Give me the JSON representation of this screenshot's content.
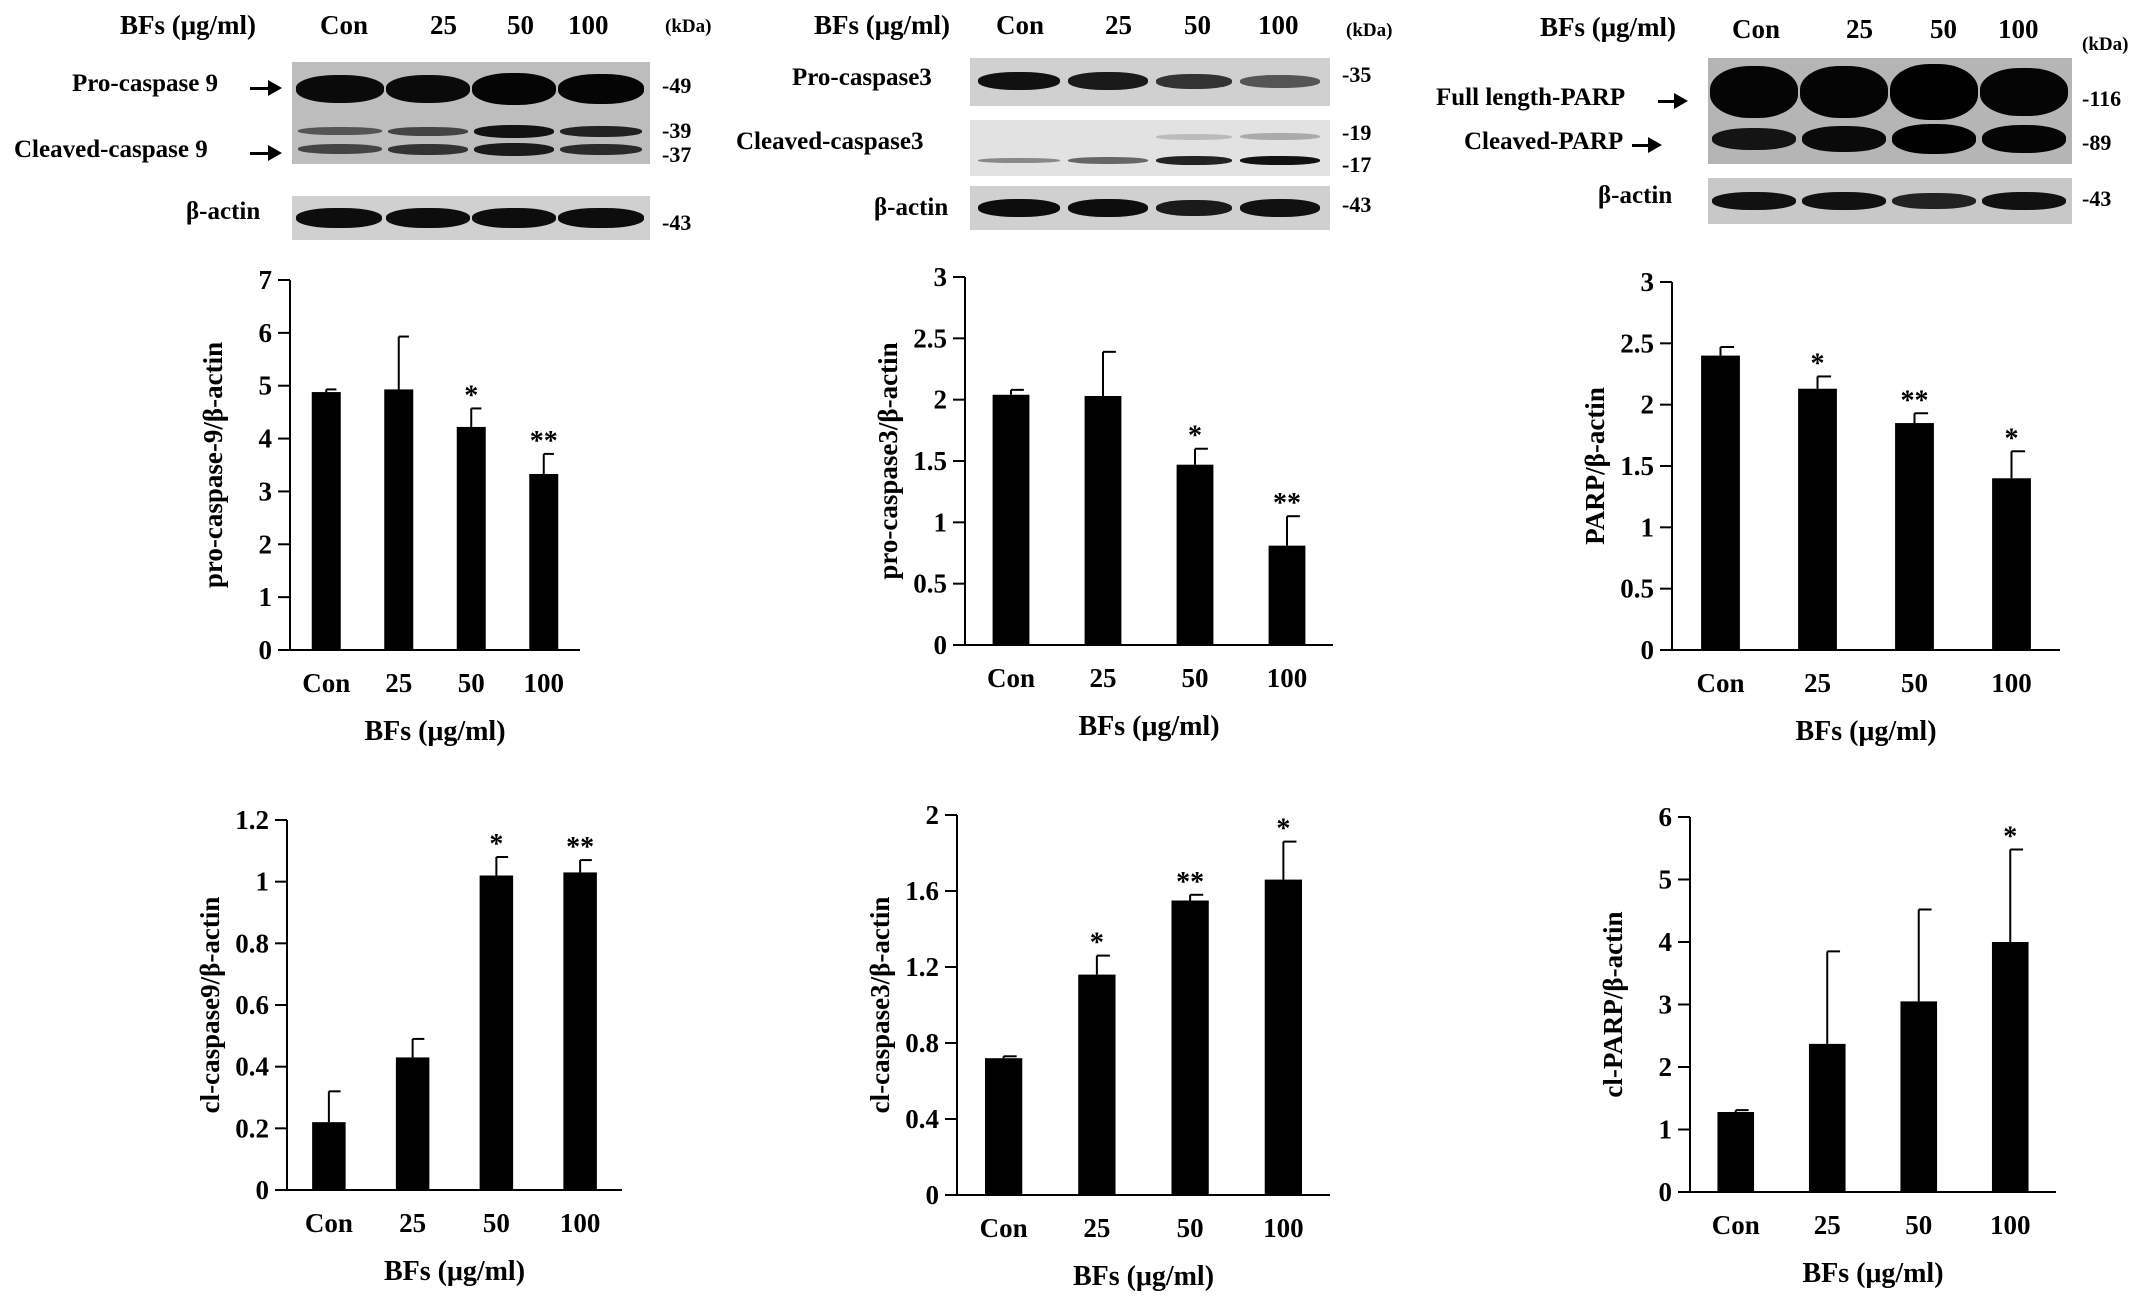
{
  "blots": [
    {
      "treatment_label": "BFs (μg/ml)",
      "lanes": [
        "Con",
        "25",
        "50",
        "100"
      ],
      "kda_label": "(kDa)",
      "rows": [
        {
          "label": "Pro-caspase 9",
          "markers": [
            "-49"
          ]
        },
        {
          "label": "Cleaved-caspase 9",
          "markers": [
            "-39",
            "-37"
          ]
        },
        {
          "label": "β-actin",
          "markers": [
            "-43"
          ]
        }
      ]
    },
    {
      "treatment_label": "BFs (μg/ml)",
      "lanes": [
        "Con",
        "25",
        "50",
        "100"
      ],
      "kda_label": "(kDa)",
      "rows": [
        {
          "label": "Pro-caspase3",
          "markers": [
            "-35"
          ]
        },
        {
          "label": "Cleaved-caspase3",
          "markers": [
            "-19",
            "-17"
          ]
        },
        {
          "label": "β-actin",
          "markers": [
            "-43"
          ]
        }
      ]
    },
    {
      "treatment_label": "BFs (μg/ml)",
      "lanes": [
        "Con",
        "25",
        "50",
        "100"
      ],
      "kda_label": "(kDa)",
      "rows": [
        {
          "label": "Full length-PARP",
          "markers": [
            "-116"
          ]
        },
        {
          "label": "Cleaved-PARP",
          "markers": [
            "-89"
          ]
        },
        {
          "label": "β-actin",
          "markers": [
            "-43"
          ]
        }
      ]
    }
  ],
  "chart_data": [
    {
      "type": "bar",
      "ylabel": "pro-caspase-9/β-actin",
      "xlabel": "BFs (μg/ml)",
      "categories": [
        "Con",
        "25",
        "50",
        "100"
      ],
      "values": [
        4.88,
        4.93,
        4.22,
        3.33
      ],
      "errors": [
        0.05,
        1.0,
        0.35,
        0.38
      ],
      "significance": [
        "",
        "",
        "*",
        "**"
      ],
      "ylim": [
        0,
        7
      ],
      "yticks": [
        0,
        1,
        2,
        3,
        4,
        5,
        6,
        7
      ],
      "ytick_labels": [
        "0",
        "1",
        "2",
        "3",
        "4",
        "5",
        "6",
        "7"
      ],
      "bar_color": "#000000",
      "grid": false
    },
    {
      "type": "bar",
      "ylabel": "pro-caspase3/β-actin",
      "xlabel": "BFs (μg/ml)",
      "categories": [
        "Con",
        "25",
        "50",
        "100"
      ],
      "values": [
        2.04,
        2.03,
        1.47,
        0.81
      ],
      "errors": [
        0.04,
        0.36,
        0.13,
        0.24
      ],
      "significance": [
        "",
        "",
        "*",
        "**"
      ],
      "ylim": [
        0,
        3
      ],
      "yticks": [
        0,
        0.5,
        1,
        1.5,
        2,
        2.5,
        3
      ],
      "ytick_labels": [
        "0",
        "0.5",
        "1",
        "1.5",
        "2",
        "2.5",
        "3"
      ],
      "bar_color": "#000000",
      "grid": false
    },
    {
      "type": "bar",
      "ylabel": "PARP/β-actin",
      "xlabel": "BFs (μg/ml)",
      "categories": [
        "Con",
        "25",
        "50",
        "100"
      ],
      "values": [
        2.4,
        2.13,
        1.85,
        1.4
      ],
      "errors": [
        0.07,
        0.1,
        0.08,
        0.22
      ],
      "significance": [
        "",
        "*",
        "**",
        "*"
      ],
      "ylim": [
        0,
        3
      ],
      "yticks": [
        0,
        0.5,
        1,
        1.5,
        2,
        2.5,
        3
      ],
      "ytick_labels": [
        "0",
        "0.5",
        "1",
        "1.5",
        "2",
        "2.5",
        "3"
      ],
      "bar_color": "#000000",
      "grid": false
    },
    {
      "type": "bar",
      "ylabel": "cl-caspase9/β-actin",
      "xlabel": "BFs (μg/ml)",
      "categories": [
        "Con",
        "25",
        "50",
        "100"
      ],
      "values": [
        0.22,
        0.43,
        1.02,
        1.03
      ],
      "errors": [
        0.1,
        0.06,
        0.06,
        0.04
      ],
      "significance": [
        "",
        "",
        "*",
        "**"
      ],
      "ylim": [
        0,
        1.2
      ],
      "yticks": [
        0,
        0.2,
        0.4,
        0.6,
        0.8,
        1,
        1.2
      ],
      "ytick_labels": [
        "0",
        "0.2",
        "0.4",
        "0.6",
        "0.8",
        "1",
        "1.2"
      ],
      "bar_color": "#000000",
      "grid": false
    },
    {
      "type": "bar",
      "ylabel": "cl-caspase3/β-actin",
      "xlabel": "BFs (μg/ml)",
      "categories": [
        "Con",
        "25",
        "50",
        "100"
      ],
      "values": [
        0.72,
        1.16,
        1.55,
        1.66
      ],
      "errors": [
        0.01,
        0.1,
        0.03,
        0.2
      ],
      "significance": [
        "",
        "*",
        "**",
        "*"
      ],
      "ylim": [
        0,
        2
      ],
      "yticks": [
        0,
        0.4,
        0.8,
        1.2,
        1.6,
        2
      ],
      "ytick_labels": [
        "0",
        "0.4",
        "0.8",
        "1.2",
        "1.6",
        "2"
      ],
      "bar_color": "#000000",
      "grid": false
    },
    {
      "type": "bar",
      "ylabel": "cl-PARP/β-actin",
      "xlabel": "BFs (μg/ml)",
      "categories": [
        "Con",
        "25",
        "50",
        "100"
      ],
      "values": [
        1.28,
        2.37,
        3.05,
        4.0
      ],
      "errors": [
        0.03,
        1.48,
        1.47,
        1.48
      ],
      "significance": [
        "",
        "",
        "",
        "*"
      ],
      "ylim": [
        0,
        6
      ],
      "yticks": [
        0,
        1,
        2,
        3,
        4,
        5,
        6
      ],
      "ytick_labels": [
        "0",
        "1",
        "2",
        "3",
        "4",
        "5",
        "6"
      ],
      "bar_color": "#000000",
      "grid": false
    }
  ]
}
